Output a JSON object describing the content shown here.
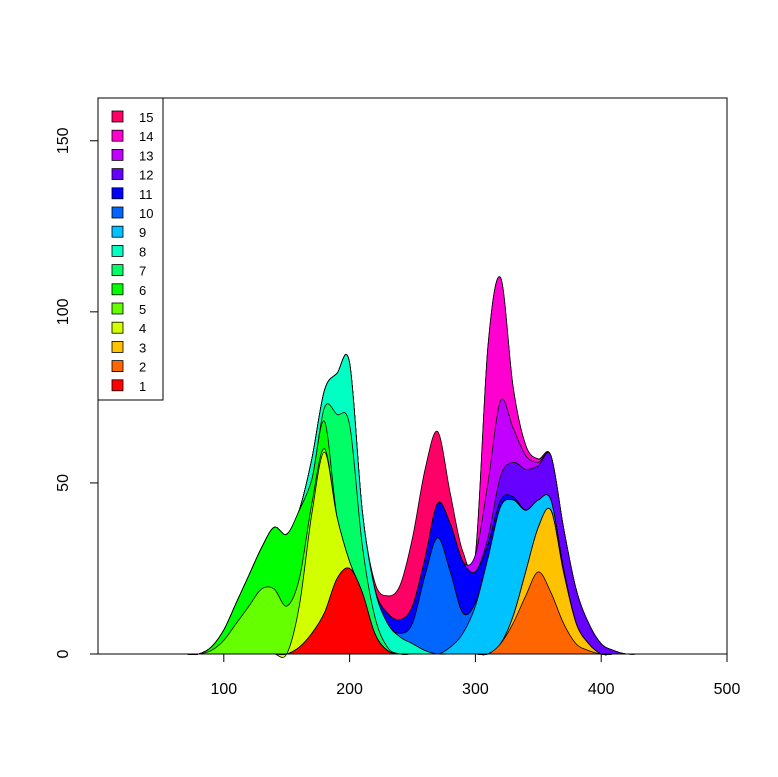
{
  "chart_data": {
    "type": "area",
    "stacked": true,
    "title": "",
    "xlabel": "",
    "ylabel": "",
    "xlim": [
      0,
      500
    ],
    "ylim": [
      0,
      160
    ],
    "x_ticks": [
      100,
      200,
      300,
      400,
      500
    ],
    "y_ticks": [
      0,
      50,
      100,
      150
    ],
    "grid": false,
    "legend_position": "top-left",
    "x": [
      70,
      80,
      90,
      100,
      110,
      120,
      130,
      140,
      150,
      160,
      170,
      180,
      190,
      200,
      210,
      220,
      230,
      240,
      250,
      260,
      270,
      280,
      290,
      300,
      310,
      320,
      330,
      340,
      350,
      360,
      370,
      380,
      390,
      400,
      410,
      420,
      430
    ],
    "series": [
      {
        "name": "1",
        "color": "#FF0000",
        "values": [
          0,
          0,
          0,
          0,
          0,
          0,
          0,
          0,
          0,
          2,
          6,
          12,
          22,
          25,
          18,
          6,
          1,
          0,
          0,
          0,
          0,
          0,
          0,
          0,
          0,
          0,
          0,
          0,
          0,
          0,
          0,
          0,
          0,
          0,
          0,
          0,
          0
        ]
      },
      {
        "name": "2",
        "color": "#FF6600",
        "values": [
          0,
          0,
          0,
          0,
          0,
          0,
          0,
          0,
          0,
          0,
          0,
          0,
          0,
          0,
          0,
          0,
          0,
          0,
          0,
          0,
          0,
          0,
          0,
          0,
          0,
          3,
          9,
          17,
          24,
          18,
          9,
          3,
          1,
          0,
          0,
          0,
          0
        ]
      },
      {
        "name": "3",
        "color": "#FFC200",
        "values": [
          0,
          0,
          0,
          0,
          0,
          0,
          0,
          0,
          0,
          0,
          0,
          0,
          0,
          0,
          0,
          0,
          0,
          0,
          0,
          0,
          0,
          0,
          0,
          0,
          0,
          0,
          2,
          7,
          13,
          24,
          15,
          6,
          2,
          0,
          0,
          0,
          0
        ]
      },
      {
        "name": "4",
        "color": "#D1FF00",
        "values": [
          0,
          0,
          0,
          0,
          0,
          0,
          0,
          0,
          0,
          12,
          35,
          47,
          18,
          2,
          0,
          0,
          0,
          0,
          0,
          0,
          0,
          0,
          0,
          0,
          0,
          0,
          0,
          0,
          0,
          0,
          0,
          0,
          0,
          0,
          0,
          0,
          0
        ]
      },
      {
        "name": "5",
        "color": "#66FF00",
        "values": [
          0,
          0,
          1,
          4,
          9,
          14,
          19,
          19,
          14,
          8,
          3,
          1,
          0,
          0,
          0,
          0,
          0,
          0,
          0,
          0,
          0,
          0,
          0,
          0,
          0,
          0,
          0,
          0,
          0,
          0,
          0,
          0,
          0,
          0,
          0,
          0,
          0
        ]
      },
      {
        "name": "6",
        "color": "#00FF00",
        "values": [
          0,
          0,
          1,
          3,
          6,
          9,
          12,
          18,
          21,
          20,
          7,
          8,
          0,
          0,
          0,
          0,
          0,
          0,
          0,
          0,
          0,
          0,
          0,
          0,
          0,
          0,
          0,
          0,
          0,
          0,
          0,
          0,
          0,
          0,
          0,
          0,
          0
        ]
      },
      {
        "name": "7",
        "color": "#00FF66",
        "values": [
          0,
          0,
          0,
          0,
          0,
          0,
          0,
          0,
          0,
          0,
          0,
          4,
          30,
          40,
          14,
          5,
          1,
          0,
          0,
          0,
          0,
          0,
          0,
          0,
          0,
          0,
          0,
          0,
          0,
          0,
          0,
          0,
          0,
          0,
          0,
          0,
          0
        ]
      },
      {
        "name": "8",
        "color": "#00FFC2",
        "values": [
          0,
          0,
          0,
          0,
          0,
          0,
          0,
          0,
          0,
          0,
          6,
          5,
          12,
          18,
          10,
          8,
          7,
          5,
          3,
          1,
          0,
          0,
          0,
          0,
          0,
          0,
          0,
          0,
          0,
          0,
          0,
          0,
          0,
          0,
          0,
          0,
          0
        ]
      },
      {
        "name": "9",
        "color": "#00C2FF",
        "values": [
          0,
          0,
          0,
          0,
          0,
          0,
          0,
          0,
          0,
          0,
          0,
          0,
          0,
          0,
          0,
          0,
          0,
          0,
          0,
          0,
          0,
          2,
          6,
          14,
          28,
          40,
          34,
          18,
          8,
          3,
          1,
          0,
          0,
          0,
          0,
          0,
          0
        ]
      },
      {
        "name": "10",
        "color": "#0066FF",
        "values": [
          0,
          0,
          0,
          0,
          0,
          0,
          0,
          0,
          0,
          0,
          0,
          0,
          0,
          0,
          0,
          0,
          0,
          1,
          6,
          22,
          34,
          22,
          6,
          1,
          0,
          0,
          0,
          0,
          0,
          0,
          0,
          0,
          0,
          0,
          0,
          0,
          0
        ]
      },
      {
        "name": "11",
        "color": "#0000FF",
        "values": [
          0,
          0,
          0,
          0,
          0,
          0,
          0,
          0,
          0,
          0,
          0,
          0,
          0,
          0,
          0,
          0,
          3,
          4,
          5,
          5,
          10,
          14,
          15,
          9,
          4,
          2,
          1,
          0,
          0,
          0,
          0,
          0,
          0,
          0,
          0,
          0,
          0
        ]
      },
      {
        "name": "12",
        "color": "#6600FF",
        "values": [
          0,
          0,
          0,
          0,
          0,
          0,
          0,
          0,
          0,
          0,
          0,
          0,
          0,
          0,
          0,
          0,
          0,
          0,
          0,
          0,
          0,
          0,
          0,
          0,
          2,
          7,
          10,
          12,
          10,
          13,
          12,
          10,
          6,
          3,
          1,
          0,
          0
        ]
      },
      {
        "name": "13",
        "color": "#C200FF",
        "values": [
          0,
          0,
          0,
          0,
          0,
          0,
          0,
          0,
          0,
          0,
          0,
          0,
          0,
          0,
          0,
          0,
          0,
          0,
          0,
          0,
          0,
          0,
          0,
          5,
          16,
          22,
          10,
          4,
          1,
          0,
          0,
          0,
          0,
          0,
          0,
          0,
          0
        ]
      },
      {
        "name": "14",
        "color": "#FF00D1",
        "values": [
          0,
          0,
          0,
          0,
          0,
          0,
          0,
          0,
          0,
          0,
          0,
          0,
          0,
          0,
          0,
          0,
          0,
          0,
          0,
          0,
          0,
          0,
          0,
          0,
          40,
          36,
          12,
          3,
          1,
          0,
          0,
          0,
          0,
          0,
          0,
          0,
          0
        ]
      },
      {
        "name": "15",
        "color": "#FF0066",
        "values": [
          0,
          0,
          0,
          0,
          0,
          0,
          0,
          0,
          0,
          0,
          0,
          0,
          0,
          0,
          0,
          2,
          5,
          10,
          20,
          26,
          21,
          9,
          3,
          0,
          0,
          0,
          0,
          0,
          0,
          0,
          0,
          0,
          0,
          0,
          0,
          0,
          0
        ]
      }
    ]
  }
}
